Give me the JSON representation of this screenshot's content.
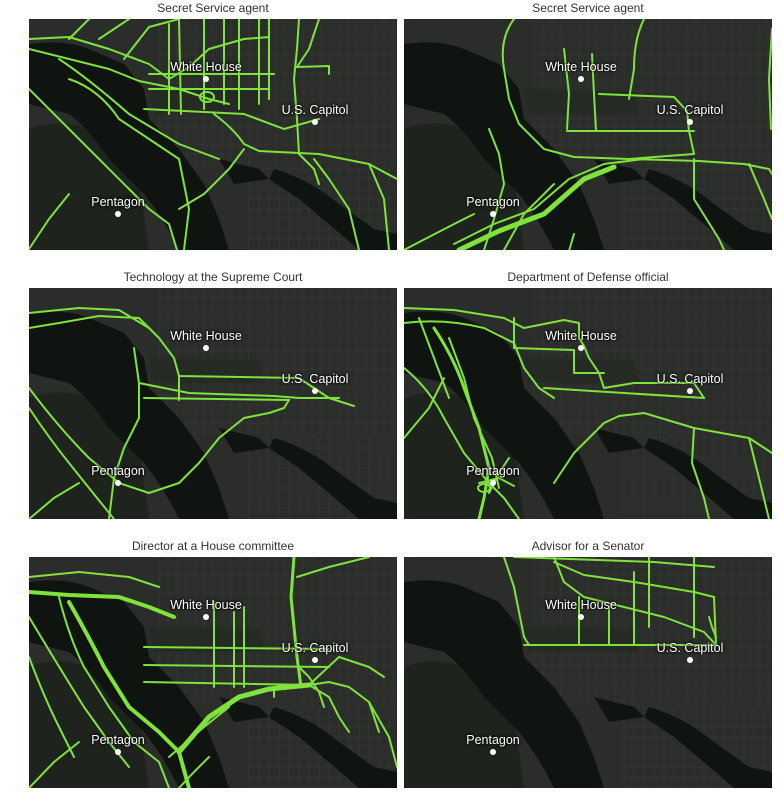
{
  "colors": {
    "route": "#7fe33c",
    "land": "#2a2d29",
    "water": "#101410",
    "park": "#1e231d",
    "label": "#ffffff"
  },
  "landmarks": {
    "white_house": "White House",
    "capitol": "U.S. Capitol",
    "pentagon": "Pentagon"
  },
  "panels": [
    {
      "title": "Secret Service agent"
    },
    {
      "title": "Secret Service agent"
    },
    {
      "title": "Technology at the Supreme Court"
    },
    {
      "title": "Department of Defense official"
    },
    {
      "title": "Director at a House committee"
    },
    {
      "title": "Advisor for a Senator"
    }
  ]
}
